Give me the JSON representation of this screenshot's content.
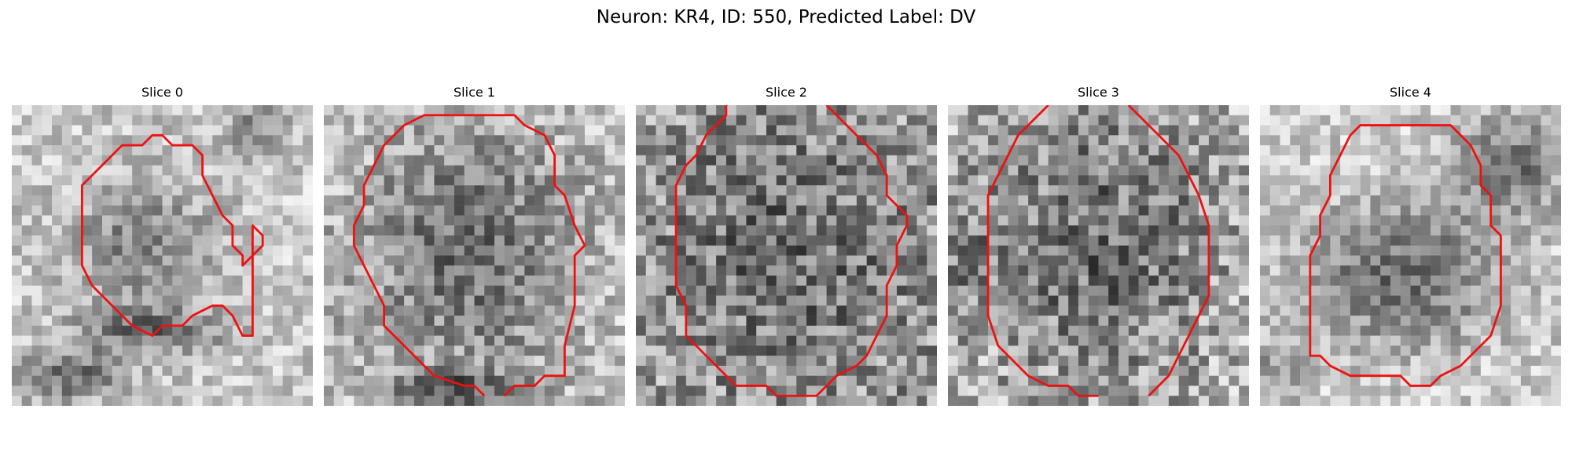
{
  "figure": {
    "title": "Neuron: KR4, ID: 550, Predicted Label: DV"
  },
  "panels": [
    {
      "title": "Slice 0"
    },
    {
      "title": "Slice 1"
    },
    {
      "title": "Slice 2"
    },
    {
      "title": "Slice 3"
    },
    {
      "title": "Slice 4"
    }
  ],
  "colors": {
    "contour": "#ee1111",
    "background": "#ffffff"
  }
}
